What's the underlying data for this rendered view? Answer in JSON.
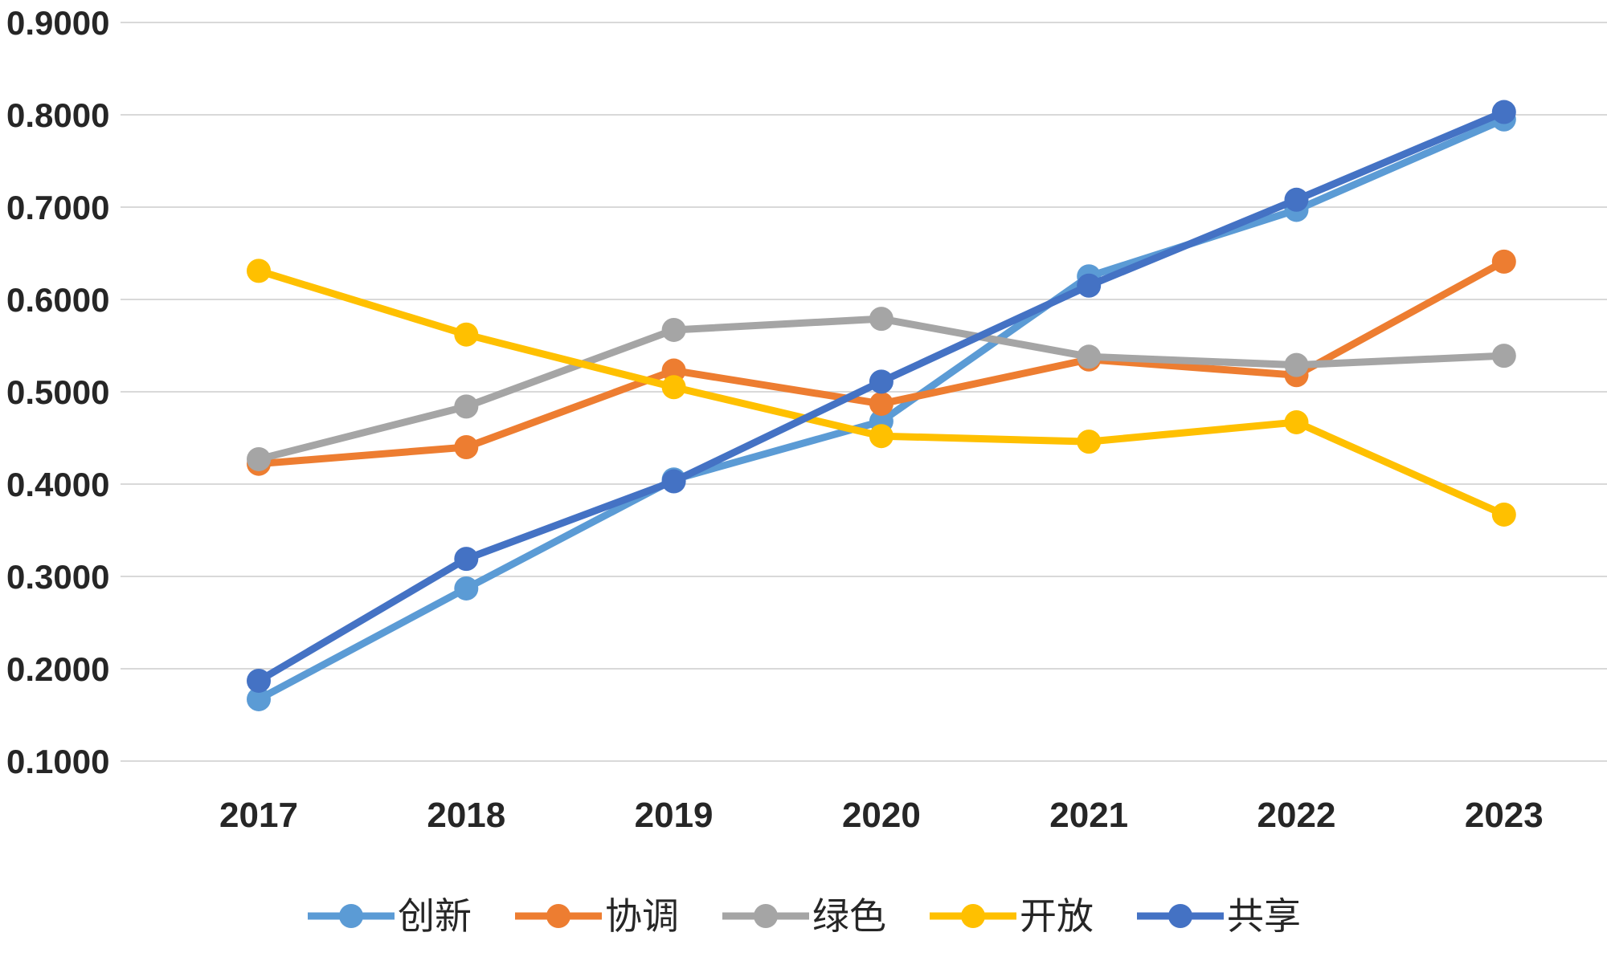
{
  "chart_data": {
    "type": "line",
    "categories": [
      "2017",
      "2018",
      "2019",
      "2020",
      "2021",
      "2022",
      "2023"
    ],
    "series": [
      {
        "name": "创新",
        "color": "#5B9BD5",
        "values": [
          0.167,
          0.287,
          0.405,
          0.468,
          0.625,
          0.697,
          0.795
        ]
      },
      {
        "name": "协调",
        "color": "#ED7D31",
        "values": [
          0.422,
          0.44,
          0.523,
          0.487,
          0.535,
          0.518,
          0.641
        ]
      },
      {
        "name": "绿色",
        "color": "#A5A5A5",
        "values": [
          0.427,
          0.484,
          0.567,
          0.579,
          0.538,
          0.529,
          0.539
        ]
      },
      {
        "name": "开放",
        "color": "#FFC000",
        "values": [
          0.631,
          0.562,
          0.505,
          0.452,
          0.446,
          0.467,
          0.367
        ]
      },
      {
        "name": "共享",
        "color": "#4472C4",
        "values": [
          0.187,
          0.319,
          0.403,
          0.511,
          0.615,
          0.708,
          0.803
        ]
      }
    ],
    "title": "",
    "xlabel": "",
    "ylabel": "",
    "ylim": [
      0.1,
      0.9
    ],
    "yticks": [
      "0.9000",
      "0.8000",
      "0.7000",
      "0.6000",
      "0.5000",
      "0.4000",
      "0.3000",
      "0.2000",
      "0.1000"
    ],
    "grid": true,
    "legend_position": "bottom"
  },
  "colors": {
    "gridline": "#D9D9D9",
    "text": "#262626",
    "background": "#FFFFFF"
  }
}
